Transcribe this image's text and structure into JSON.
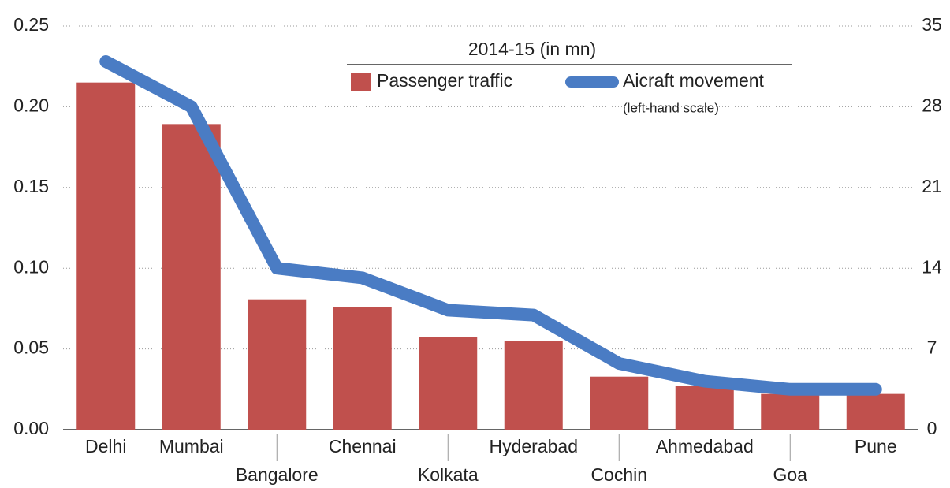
{
  "chart_data": {
    "type": "bar_line",
    "legend_title": "2014-15 (in mn)",
    "legend_note": "(left-hand scale)",
    "categories": [
      "Delhi",
      "Mumbai",
      "Bangalore",
      "Chennai",
      "Kolkata",
      "Hyderabad",
      "Cochin",
      "Ahmedabad",
      "Goa",
      "Pune"
    ],
    "series": [
      {
        "name": "Passenger traffic",
        "type": "bar",
        "axis": "y2",
        "color": "#c0504d",
        "values": [
          30.1,
          26.5,
          11.3,
          10.6,
          8.0,
          7.7,
          4.6,
          3.8,
          3.1,
          3.1
        ]
      },
      {
        "name": "Aicraft movement",
        "type": "line",
        "axis": "y",
        "color": "#4a7cc4",
        "values": [
          0.228,
          0.2,
          0.1,
          0.094,
          0.074,
          0.071,
          0.041,
          0.03,
          0.025,
          0.025
        ]
      }
    ],
    "ylim": [
      0,
      0.25
    ],
    "yticks": [
      {
        "value": 0,
        "label": "0.00"
      },
      0.05,
      {
        "value": 0.1,
        "label": "0.10"
      },
      0.15,
      {
        "value": 0.2,
        "label": "0.20"
      },
      0.25
    ],
    "y2lim": [
      0,
      35
    ],
    "y2ticks": [
      0,
      7,
      14,
      21,
      28,
      35
    ],
    "grid": true
  }
}
